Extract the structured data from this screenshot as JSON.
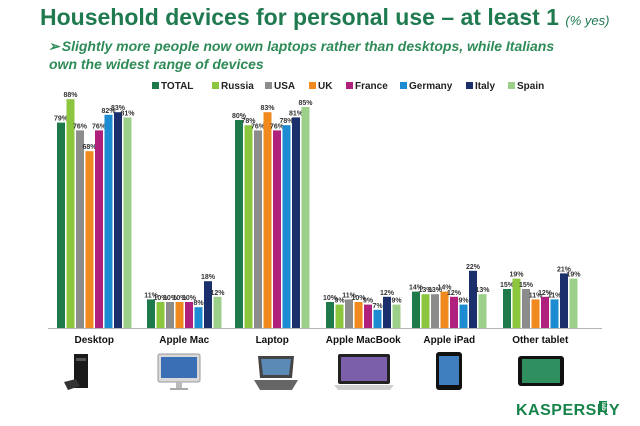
{
  "title": "Household devices for personal use – at least 1",
  "title_note": "(% yes)",
  "subtitle_arrow": "➢",
  "subtitle_line1": "Slightly more people now own laptops rather than desktops, while Italians",
  "subtitle_line2": "own the widest range of devices",
  "brand": "KASPERSKY",
  "brand_lab": "lab",
  "chart_data": {
    "type": "bar",
    "title": "Household devices for personal use – at least 1 (% yes)",
    "xlabel": "",
    "ylabel": "% yes",
    "ylim": [
      0,
      100
    ],
    "legend_position": "top",
    "categories": [
      "Desktop",
      "Apple Mac",
      "Laptop",
      "Apple MacBook",
      "Apple iPad",
      "Other tablet"
    ],
    "series": [
      {
        "name": "TOTAL",
        "color": "#1e7a4a",
        "values": [
          79,
          11,
          80,
          10,
          14,
          15
        ]
      },
      {
        "name": "Russia",
        "color": "#8cc63f",
        "values": [
          88,
          10,
          78,
          9,
          13,
          19
        ]
      },
      {
        "name": "USA",
        "color": "#8c8c8c",
        "values": [
          76,
          10,
          76,
          11,
          13,
          15
        ]
      },
      {
        "name": "UK",
        "color": "#f18a1e",
        "values": [
          68,
          10,
          83,
          10,
          14,
          11
        ]
      },
      {
        "name": "France",
        "color": "#b0217e",
        "values": [
          76,
          10,
          76,
          9,
          12,
          12
        ]
      },
      {
        "name": "Germany",
        "color": "#1d8bd1",
        "values": [
          82,
          8,
          78,
          7,
          9,
          11
        ]
      },
      {
        "name": "Italy",
        "color": "#1a2f6b",
        "values": [
          83,
          18,
          81,
          12,
          22,
          21
        ]
      },
      {
        "name": "Spain",
        "color": "#9ccf8a",
        "values": [
          81,
          12,
          85,
          9,
          13,
          19
        ]
      }
    ],
    "icons": [
      "desktop-computer-icon",
      "imac-icon",
      "laptop-icon",
      "macbook-icon",
      "ipad-icon",
      "tablet-icon"
    ]
  }
}
